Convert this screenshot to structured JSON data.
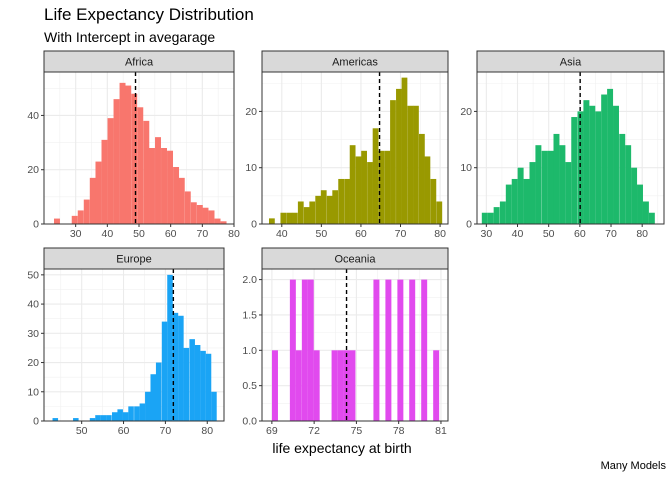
{
  "title": "Life Expectancy Distribution",
  "subtitle": "With Intercept in avegarage",
  "xlabel": "life expectancy at birth",
  "caption": "Many Models",
  "chart_data": {
    "type": "bar",
    "subtype": "faceted-histogram",
    "facet_scales": "free",
    "reference_line": "vertical dashed line at the mean",
    "grid": true,
    "facets": [
      {
        "name": "Africa",
        "color": "#F8766D",
        "xlim": [
          20,
          80
        ],
        "ylim": [
          0,
          56
        ],
        "xticks": [
          30,
          40,
          50,
          60,
          70,
          80
        ],
        "yticks": [
          0,
          20,
          40
        ],
        "mean": 48.9,
        "binwidth": 1.88,
        "bins": [
          {
            "x": 24.1,
            "count": 2
          },
          {
            "x": 29.7,
            "count": 3
          },
          {
            "x": 31.6,
            "count": 5
          },
          {
            "x": 33.5,
            "count": 9
          },
          {
            "x": 35.4,
            "count": 17
          },
          {
            "x": 37.2,
            "count": 23
          },
          {
            "x": 39.1,
            "count": 31
          },
          {
            "x": 41.0,
            "count": 39
          },
          {
            "x": 42.9,
            "count": 46
          },
          {
            "x": 44.8,
            "count": 52
          },
          {
            "x": 46.6,
            "count": 51
          },
          {
            "x": 48.5,
            "count": 48
          },
          {
            "x": 50.4,
            "count": 43
          },
          {
            "x": 52.3,
            "count": 38
          },
          {
            "x": 54.1,
            "count": 28
          },
          {
            "x": 56.0,
            "count": 32
          },
          {
            "x": 57.9,
            "count": 28
          },
          {
            "x": 59.8,
            "count": 27
          },
          {
            "x": 61.7,
            "count": 21
          },
          {
            "x": 63.5,
            "count": 17
          },
          {
            "x": 65.4,
            "count": 12
          },
          {
            "x": 67.3,
            "count": 8
          },
          {
            "x": 69.2,
            "count": 7
          },
          {
            "x": 71.0,
            "count": 6
          },
          {
            "x": 72.9,
            "count": 5
          },
          {
            "x": 74.8,
            "count": 2
          },
          {
            "x": 76.7,
            "count": 1
          }
        ]
      },
      {
        "name": "Americas",
        "color": "#999900",
        "xlim": [
          35,
          82
        ],
        "ylim": [
          0,
          27
        ],
        "xticks": [
          40,
          50,
          60,
          70,
          80
        ],
        "yticks": [
          0,
          10,
          20
        ],
        "mean": 64.7,
        "binwidth": 1.46,
        "bins": [
          {
            "x": 37.5,
            "count": 1
          },
          {
            "x": 40.4,
            "count": 2
          },
          {
            "x": 41.9,
            "count": 2
          },
          {
            "x": 43.3,
            "count": 2
          },
          {
            "x": 44.8,
            "count": 4
          },
          {
            "x": 46.3,
            "count": 3
          },
          {
            "x": 47.7,
            "count": 4
          },
          {
            "x": 49.2,
            "count": 5
          },
          {
            "x": 50.6,
            "count": 6
          },
          {
            "x": 52.1,
            "count": 5
          },
          {
            "x": 53.5,
            "count": 6
          },
          {
            "x": 55.0,
            "count": 8
          },
          {
            "x": 56.5,
            "count": 8
          },
          {
            "x": 57.9,
            "count": 14
          },
          {
            "x": 59.4,
            "count": 12
          },
          {
            "x": 60.8,
            "count": 13
          },
          {
            "x": 62.3,
            "count": 11
          },
          {
            "x": 63.7,
            "count": 17
          },
          {
            "x": 65.2,
            "count": 13
          },
          {
            "x": 66.7,
            "count": 13
          },
          {
            "x": 68.1,
            "count": 22
          },
          {
            "x": 69.6,
            "count": 24
          },
          {
            "x": 71.0,
            "count": 26
          },
          {
            "x": 72.5,
            "count": 21
          },
          {
            "x": 73.9,
            "count": 21
          },
          {
            "x": 75.4,
            "count": 16
          },
          {
            "x": 76.8,
            "count": 12
          },
          {
            "x": 78.3,
            "count": 8
          },
          {
            "x": 79.8,
            "count": 4
          }
        ]
      },
      {
        "name": "Asia",
        "color": "#1DB96B",
        "xlim": [
          27,
          87
        ],
        "ylim": [
          0,
          27
        ],
        "xticks": [
          30,
          40,
          50,
          60,
          70,
          80
        ],
        "yticks": [
          0,
          10,
          20
        ],
        "mean": 60.1,
        "binwidth": 1.91,
        "bins": [
          {
            "x": 29.5,
            "count": 2
          },
          {
            "x": 31.4,
            "count": 2
          },
          {
            "x": 33.3,
            "count": 3
          },
          {
            "x": 35.3,
            "count": 4
          },
          {
            "x": 37.2,
            "count": 7
          },
          {
            "x": 39.1,
            "count": 8
          },
          {
            "x": 41.0,
            "count": 10
          },
          {
            "x": 42.9,
            "count": 8
          },
          {
            "x": 44.8,
            "count": 11
          },
          {
            "x": 46.7,
            "count": 14
          },
          {
            "x": 48.7,
            "count": 13
          },
          {
            "x": 50.6,
            "count": 13
          },
          {
            "x": 52.5,
            "count": 16
          },
          {
            "x": 54.4,
            "count": 14
          },
          {
            "x": 56.3,
            "count": 11
          },
          {
            "x": 58.2,
            "count": 19
          },
          {
            "x": 60.2,
            "count": 20
          },
          {
            "x": 62.1,
            "count": 22
          },
          {
            "x": 64.0,
            "count": 21
          },
          {
            "x": 65.9,
            "count": 20
          },
          {
            "x": 67.8,
            "count": 23
          },
          {
            "x": 69.7,
            "count": 24
          },
          {
            "x": 71.6,
            "count": 21
          },
          {
            "x": 73.6,
            "count": 16
          },
          {
            "x": 75.5,
            "count": 14
          },
          {
            "x": 77.4,
            "count": 10
          },
          {
            "x": 79.3,
            "count": 7
          },
          {
            "x": 81.2,
            "count": 4
          },
          {
            "x": 83.1,
            "count": 2
          }
        ]
      },
      {
        "name": "Europe",
        "color": "#1AA4F5",
        "xlim": [
          41,
          84
        ],
        "ylim": [
          0,
          52
        ],
        "xticks": [
          50,
          60,
          70,
          80
        ],
        "yticks": [
          0,
          10,
          20,
          30,
          40,
          50
        ],
        "mean": 71.9,
        "binwidth": 1.32,
        "bins": [
          {
            "x": 43.7,
            "count": 1
          },
          {
            "x": 48.6,
            "count": 1
          },
          {
            "x": 52.6,
            "count": 1
          },
          {
            "x": 53.9,
            "count": 2
          },
          {
            "x": 55.2,
            "count": 2
          },
          {
            "x": 56.5,
            "count": 2
          },
          {
            "x": 57.9,
            "count": 3
          },
          {
            "x": 59.2,
            "count": 4
          },
          {
            "x": 60.5,
            "count": 3
          },
          {
            "x": 61.8,
            "count": 5
          },
          {
            "x": 63.2,
            "count": 5
          },
          {
            "x": 64.5,
            "count": 6
          },
          {
            "x": 65.8,
            "count": 10
          },
          {
            "x": 67.1,
            "count": 16
          },
          {
            "x": 68.4,
            "count": 20
          },
          {
            "x": 69.8,
            "count": 34
          },
          {
            "x": 71.1,
            "count": 50
          },
          {
            "x": 72.4,
            "count": 37
          },
          {
            "x": 73.7,
            "count": 36
          },
          {
            "x": 75.0,
            "count": 25
          },
          {
            "x": 76.4,
            "count": 28
          },
          {
            "x": 77.7,
            "count": 26
          },
          {
            "x": 79.0,
            "count": 24
          },
          {
            "x": 80.3,
            "count": 23
          },
          {
            "x": 81.6,
            "count": 10
          }
        ]
      },
      {
        "name": "Oceania",
        "color": "#E14AEE",
        "xlim": [
          68.3,
          81.5
        ],
        "ylim": [
          0,
          2.15
        ],
        "xticks": [
          69,
          72,
          75,
          78,
          81
        ],
        "yticks": [
          0.0,
          0.5,
          1.0,
          1.5,
          2.0
        ],
        "mean": 74.3,
        "binwidth": 0.424,
        "bins": [
          {
            "x": 69.22,
            "count": 1
          },
          {
            "x": 70.49,
            "count": 2
          },
          {
            "x": 70.91,
            "count": 1
          },
          {
            "x": 71.34,
            "count": 2
          },
          {
            "x": 71.76,
            "count": 2
          },
          {
            "x": 72.18,
            "count": 1
          },
          {
            "x": 73.45,
            "count": 1
          },
          {
            "x": 73.88,
            "count": 1
          },
          {
            "x": 74.3,
            "count": 1
          },
          {
            "x": 74.72,
            "count": 1
          },
          {
            "x": 76.42,
            "count": 2
          },
          {
            "x": 77.27,
            "count": 2
          },
          {
            "x": 78.12,
            "count": 2
          },
          {
            "x": 78.96,
            "count": 2
          },
          {
            "x": 79.81,
            "count": 2
          },
          {
            "x": 80.66,
            "count": 1
          }
        ]
      }
    ]
  }
}
